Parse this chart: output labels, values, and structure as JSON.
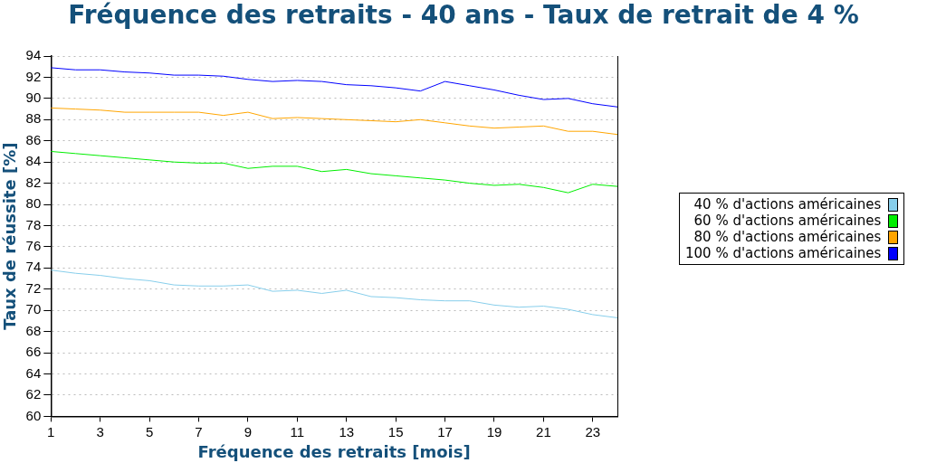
{
  "chart_data": {
    "type": "line",
    "title": "Fréquence des retraits - 40 ans - Taux de retrait de 4 %",
    "xlabel": "Fréquence des retraits [mois]",
    "ylabel": "Taux de réussite [%]",
    "x": [
      1,
      2,
      3,
      4,
      5,
      6,
      7,
      8,
      9,
      10,
      11,
      12,
      13,
      14,
      15,
      16,
      17,
      18,
      19,
      20,
      21,
      22,
      23,
      24
    ],
    "series": [
      {
        "name": "40 % d'actions américaines",
        "color": "#87ceeb",
        "values": [
          73.8,
          73.5,
          73.3,
          73.0,
          72.8,
          72.4,
          72.3,
          72.3,
          72.4,
          71.8,
          71.9,
          71.6,
          71.9,
          71.3,
          71.2,
          71.0,
          70.9,
          70.9,
          70.5,
          70.3,
          70.4,
          70.1,
          69.6,
          69.3
        ]
      },
      {
        "name": "60 % d'actions américaines",
        "color": "#00ee00",
        "values": [
          85.0,
          84.8,
          84.6,
          84.4,
          84.2,
          84.0,
          83.9,
          83.9,
          83.4,
          83.6,
          83.6,
          83.1,
          83.3,
          82.9,
          82.7,
          82.5,
          82.3,
          82.0,
          81.8,
          81.9,
          81.6,
          81.1,
          81.9,
          81.7
        ]
      },
      {
        "name": "80 % d'actions américaines",
        "color": "#ffa500",
        "values": [
          89.1,
          89.0,
          88.9,
          88.7,
          88.7,
          88.7,
          88.7,
          88.4,
          88.7,
          88.1,
          88.2,
          88.1,
          88.0,
          87.9,
          87.8,
          88.0,
          87.7,
          87.4,
          87.2,
          87.3,
          87.4,
          86.9,
          86.9,
          86.6
        ]
      },
      {
        "name": "100 % d'actions américaines",
        "color": "#0000ff",
        "values": [
          92.9,
          92.7,
          92.7,
          92.5,
          92.4,
          92.2,
          92.2,
          92.1,
          91.8,
          91.6,
          91.7,
          91.6,
          91.3,
          91.2,
          91.0,
          90.7,
          91.6,
          91.2,
          90.8,
          90.3,
          89.9,
          90.0,
          89.5,
          89.2
        ]
      }
    ],
    "xlim": [
      1,
      24
    ],
    "xticks": [
      1,
      3,
      5,
      7,
      9,
      11,
      13,
      15,
      17,
      19,
      21,
      23
    ],
    "ylim": [
      60,
      94
    ],
    "yticks": [
      60,
      62,
      64,
      66,
      68,
      70,
      72,
      74,
      76,
      78,
      80,
      82,
      84,
      86,
      88,
      90,
      92,
      94
    ],
    "grid": "y",
    "legend": "right",
    "marker": "none",
    "line_style": "solid"
  }
}
